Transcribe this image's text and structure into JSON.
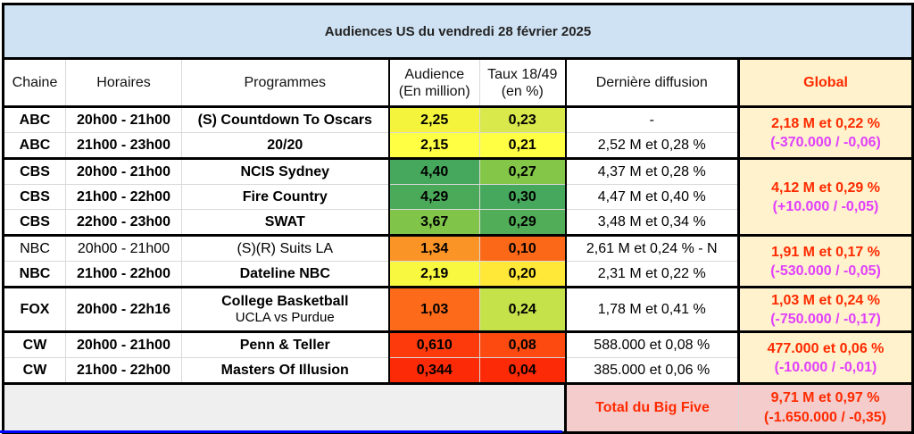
{
  "title": "Audiences US du vendredi 28 février 2025",
  "headers": {
    "chaine": "Chaine",
    "horaires": "Horaires",
    "programmes": "Programmes",
    "audience_line1": "Audience",
    "audience_line2": "(En million)",
    "taux_line1": "Taux 18/49",
    "taux_line2": "(en %)",
    "derniere": "Dernière diffusion",
    "global": "Global"
  },
  "rows": [
    {
      "chaine": "ABC",
      "horaires": "20h00 - 21h00",
      "programme": "(S) Countdown To Oscars",
      "programme_sub": "",
      "audience": "2,25",
      "audience_color": "#f4f43c",
      "taux": "0,23",
      "taux_color": "#d9e84a",
      "derniere": "-",
      "bold": true
    },
    {
      "chaine": "ABC",
      "horaires": "21h00 - 23h00",
      "programme": "20/20",
      "programme_sub": "",
      "audience": "2,15",
      "audience_color": "#ffff44",
      "taux": "0,21",
      "taux_color": "#ffff44",
      "derniere": "2,52 M et 0,28 %",
      "bold": true
    },
    {
      "chaine": "CBS",
      "horaires": "20h00 - 21h00",
      "programme": "NCIS Sydney",
      "programme_sub": "",
      "audience": "4,40",
      "audience_color": "#45a85c",
      "taux": "0,27",
      "taux_color": "#84c748",
      "derniere": "4,37 M et 0,28 %",
      "bold": true
    },
    {
      "chaine": "CBS",
      "horaires": "21h00 - 22h00",
      "programme": "Fire Country",
      "programme_sub": "",
      "audience": "4,29",
      "audience_color": "#4aaa5a",
      "taux": "0,30",
      "taux_color": "#45a85c",
      "derniere": "4,47 M et 0,40 %",
      "bold": true
    },
    {
      "chaine": "CBS",
      "horaires": "22h00 - 23h00",
      "programme": "SWAT",
      "programme_sub": "",
      "audience": "3,67",
      "audience_color": "#80c54a",
      "taux": "0,29",
      "taux_color": "#52ad58",
      "derniere": "3,48 M et 0,34 %",
      "bold": true
    },
    {
      "chaine": "NBC",
      "horaires": "20h00 - 21h00",
      "programme": "(S)(R) Suits LA",
      "programme_sub": "",
      "audience": "1,34",
      "audience_color": "#fb9426",
      "taux": "0,10",
      "taux_color": "#fb6818",
      "derniere": "2,61 M et 0,24 % - N",
      "bold": false
    },
    {
      "chaine": "NBC",
      "horaires": "21h00 - 22h00",
      "programme": "Dateline NBC",
      "programme_sub": "",
      "audience": "2,19",
      "audience_color": "#f8f840",
      "taux": "0,20",
      "taux_color": "#ffe838",
      "derniere": "2,31 M et 0,22 %",
      "bold": true
    },
    {
      "chaine": "FOX",
      "horaires": "20h00 - 22h16",
      "programme": "College Basketball",
      "programme_sub": "UCLA vs Purdue",
      "audience": "1,03",
      "audience_color": "#fc6a1a",
      "taux": "0,24",
      "taux_color": "#c5e24a",
      "derniere": "1,78 M et 0,41 %",
      "bold": true
    },
    {
      "chaine": "CW",
      "horaires": "20h00 - 21h00",
      "programme": "Penn & Teller",
      "programme_sub": "",
      "audience": "0,610",
      "audience_color": "#fc3a0c",
      "taux": "0,08",
      "taux_color": "#fc4a10",
      "derniere": "588.000 et 0,08 %",
      "bold": true
    },
    {
      "chaine": "CW",
      "horaires": "21h00 - 22h00",
      "programme": "Masters Of Illusion",
      "programme_sub": "",
      "audience": "0,344",
      "audience_color": "#fc2a06",
      "taux": "0,04",
      "taux_color": "#fc2a06",
      "derniere": "385.000 et 0,06 %",
      "bold": true
    }
  ],
  "globals": [
    {
      "network": "ABC",
      "line1": "2,18 M et 0,22 %",
      "line2": "(-370.000 / -0,06)"
    },
    {
      "network": "CBS",
      "line1": "4,12 M et 0,29 %",
      "line2": "(+10.000 / -0,05)"
    },
    {
      "network": "NBC",
      "line1": "1,91 M et 0,17 %",
      "line2": "(-530.000 / -0,05)"
    },
    {
      "network": "FOX",
      "line1": "1,03 M et 0,24 %",
      "line2": "(-750.000 / -0,17)"
    },
    {
      "network": "CW",
      "line1": "477.000 et 0,06 %",
      "line2": "(-10.000 / -0,01)"
    }
  ],
  "footer": {
    "label": "Total du Big Five",
    "line1": "9,71 M et 0,97 %",
    "line2": "(-1.650.000 / -0,35)"
  }
}
